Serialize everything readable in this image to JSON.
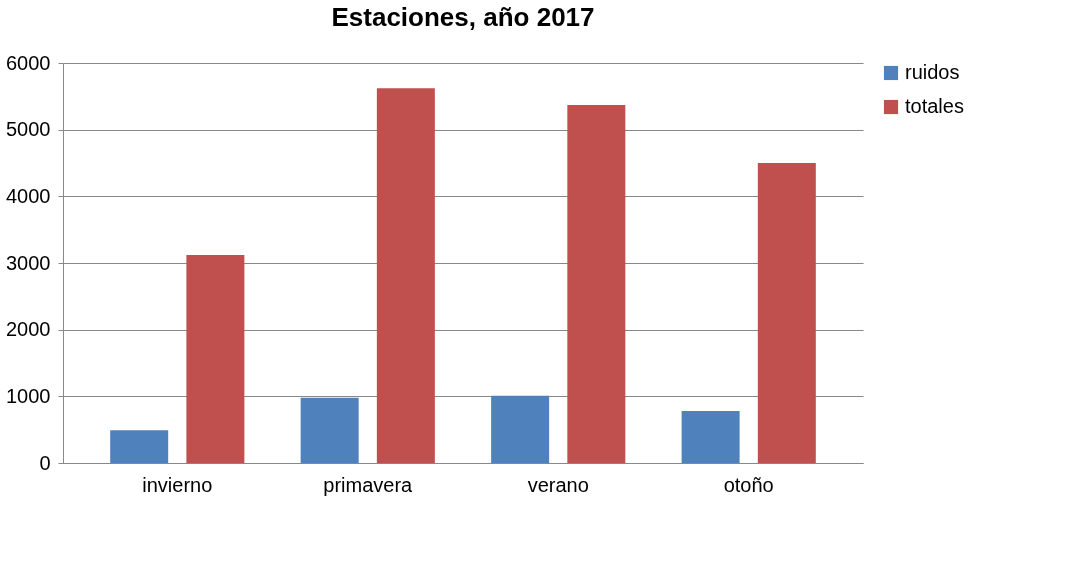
{
  "chart_data": {
    "type": "bar",
    "title": "Estaciones, año 2017",
    "categories": [
      "invierno",
      "primavera",
      "verano",
      "otoño"
    ],
    "series": [
      {
        "name": "ruidos",
        "color": "#4f81bd",
        "values": [
          490,
          980,
          1010,
          780
        ]
      },
      {
        "name": "totales",
        "color": "#c0504d",
        "values": [
          3120,
          5620,
          5370,
          4500
        ]
      }
    ],
    "ylim": [
      0,
      6000
    ],
    "yticks": [
      0,
      1000,
      2000,
      3000,
      4000,
      5000,
      6000
    ],
    "grid": "y",
    "legend": "right"
  }
}
